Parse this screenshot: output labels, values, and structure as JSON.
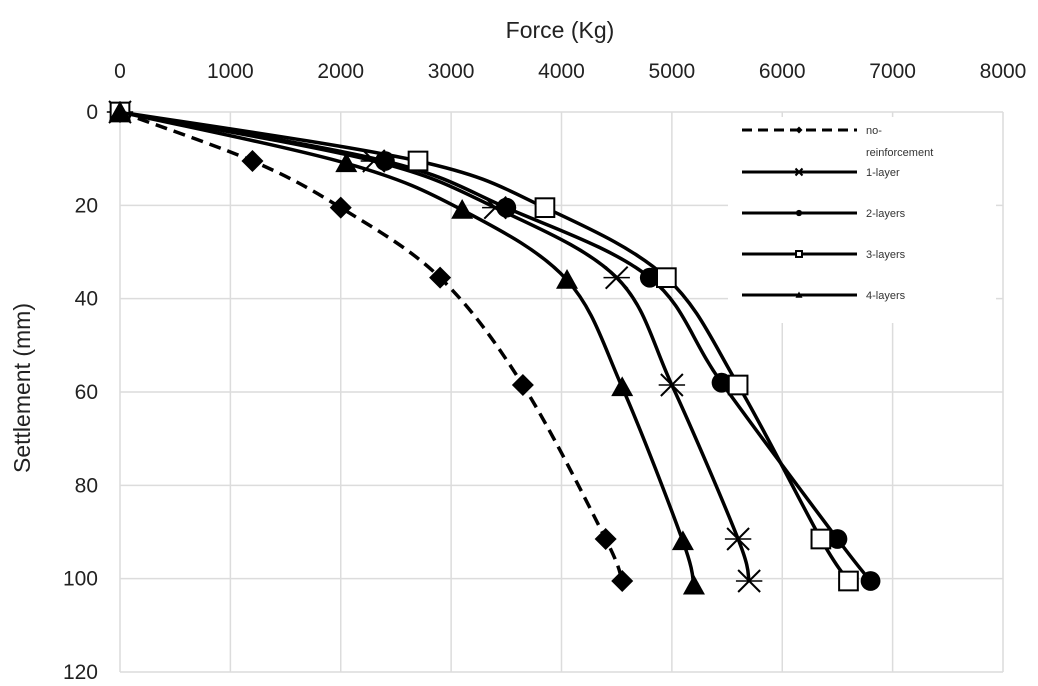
{
  "chart_data": {
    "type": "line",
    "xlabel": "Force (Kg)",
    "ylabel": "Settlement (mm)",
    "xlim": [
      0,
      8000
    ],
    "ylim": [
      0,
      120
    ],
    "x_axis_position": "top",
    "y_axis_inverted": true,
    "x_ticks": [
      "0",
      "1000",
      "2000",
      "3000",
      "4000",
      "5000",
      "6000",
      "7000",
      "8000"
    ],
    "y_ticks": [
      "0",
      "20",
      "40",
      "60",
      "80",
      "100",
      "120"
    ],
    "grid": true,
    "legend_position": "top-right",
    "series": [
      {
        "name": "no-reinforcement",
        "line_style": "dashed",
        "marker": "diamond",
        "points": [
          {
            "x": 0,
            "y": 0
          },
          {
            "x": 1200,
            "y": 10.5
          },
          {
            "x": 2000,
            "y": 20.5
          },
          {
            "x": 2900,
            "y": 35.5
          },
          {
            "x": 3650,
            "y": 58.5
          },
          {
            "x": 4400,
            "y": 91.5
          },
          {
            "x": 4550,
            "y": 100.5
          }
        ]
      },
      {
        "name": "1-layer",
        "line_style": "solid",
        "marker": "x-cross",
        "points": [
          {
            "x": 0,
            "y": 0
          },
          {
            "x": 2300,
            "y": 10.5
          },
          {
            "x": 3400,
            "y": 20.5
          },
          {
            "x": 4500,
            "y": 35.5
          },
          {
            "x": 5000,
            "y": 58.5
          },
          {
            "x": 5600,
            "y": 91.5
          },
          {
            "x": 5700,
            "y": 100.5
          }
        ]
      },
      {
        "name": "2-layers",
        "line_style": "solid",
        "marker": "circle",
        "points": [
          {
            "x": 0,
            "y": 0
          },
          {
            "x": 2400,
            "y": 10.5
          },
          {
            "x": 3500,
            "y": 20.5
          },
          {
            "x": 4800,
            "y": 35.5
          },
          {
            "x": 5450,
            "y": 58
          },
          {
            "x": 6500,
            "y": 91.5
          },
          {
            "x": 6800,
            "y": 100.5
          }
        ]
      },
      {
        "name": "3-layers",
        "line_style": "solid",
        "marker": "open-square",
        "points": [
          {
            "x": 0,
            "y": 0
          },
          {
            "x": 2700,
            "y": 10.5
          },
          {
            "x": 3850,
            "y": 20.5
          },
          {
            "x": 4950,
            "y": 35.5
          },
          {
            "x": 5600,
            "y": 58.5
          },
          {
            "x": 6350,
            "y": 91.5
          },
          {
            "x": 6600,
            "y": 100.5
          }
        ]
      },
      {
        "name": "4-layers",
        "line_style": "solid",
        "marker": "triangle",
        "points": [
          {
            "x": 0,
            "y": 0
          },
          {
            "x": 2050,
            "y": 11
          },
          {
            "x": 3100,
            "y": 21
          },
          {
            "x": 4050,
            "y": 36
          },
          {
            "x": 4550,
            "y": 59
          },
          {
            "x": 5100,
            "y": 92
          },
          {
            "x": 5200,
            "y": 101.5
          }
        ]
      }
    ],
    "colors": {
      "line": "#000000",
      "grid": "#dcdcdc",
      "background": "#ffffff"
    }
  }
}
